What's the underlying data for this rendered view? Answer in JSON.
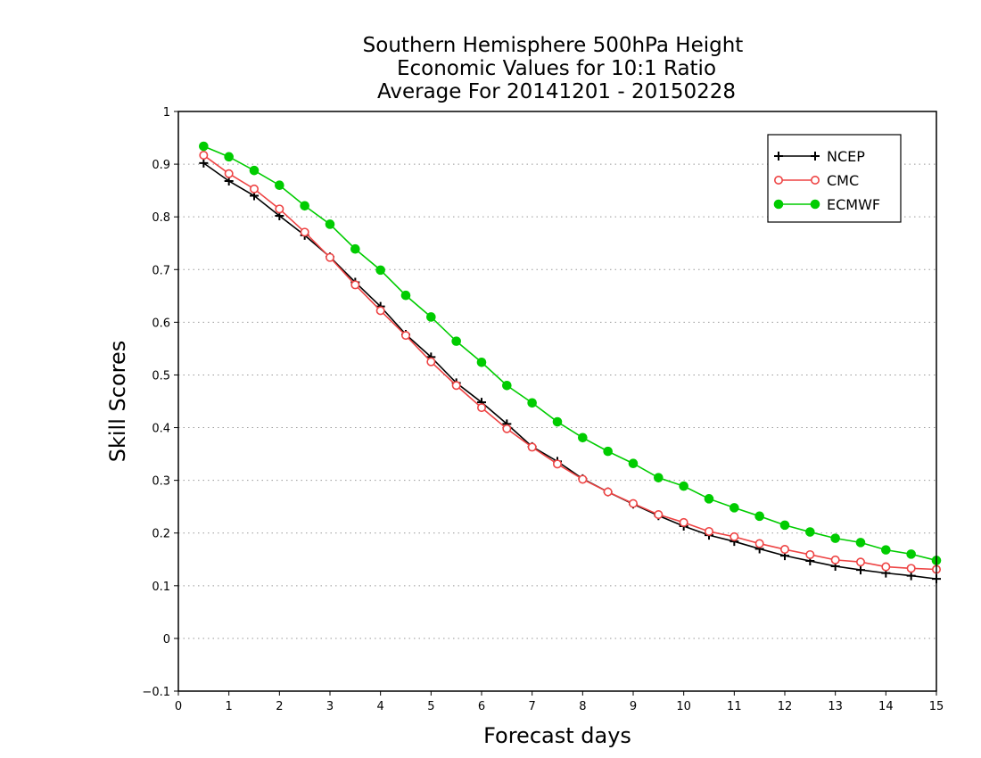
{
  "chart_data": {
    "type": "line",
    "title": [
      "Southern Hemisphere 500hPa Height",
      "Economic Values for 10:1 Ratio",
      "Average For 20141201 - 20150228"
    ],
    "xlabel": "Forecast days",
    "ylabel": "Skill Scores",
    "xlim": [
      0,
      15
    ],
    "ylim": [
      -0.1,
      1
    ],
    "xticks": [
      0,
      1,
      2,
      3,
      4,
      5,
      6,
      7,
      8,
      9,
      10,
      11,
      12,
      13,
      14,
      15
    ],
    "yticks": [
      -0.1,
      0,
      0.1,
      0.2,
      0.3,
      0.4,
      0.5,
      0.6,
      0.7,
      0.8,
      0.9,
      1
    ],
    "ytick_labels": [
      "−0.1",
      "0",
      "0.1",
      "0.2",
      "0.3",
      "0.4",
      "0.5",
      "0.6",
      "0.7",
      "0.8",
      "0.9",
      "1"
    ],
    "grid": "horizontal dotted",
    "legend_position": "top-right",
    "x": [
      0.5,
      1,
      1.5,
      2,
      2.5,
      3,
      3.5,
      4,
      4.5,
      5,
      5.5,
      6,
      6.5,
      7,
      7.5,
      8,
      8.5,
      9,
      9.5,
      10,
      10.5,
      11,
      11.5,
      12,
      12.5,
      13,
      13.5,
      14,
      14.5,
      15
    ],
    "series": [
      {
        "name": "NCEP",
        "color": "#000000",
        "marker": "plus",
        "values": [
          0.902,
          0.868,
          0.84,
          0.802,
          0.765,
          0.724,
          0.676,
          0.63,
          0.577,
          0.534,
          0.485,
          0.448,
          0.407,
          0.364,
          0.336,
          0.303,
          0.278,
          0.255,
          0.233,
          0.213,
          0.196,
          0.184,
          0.17,
          0.157,
          0.147,
          0.137,
          0.13,
          0.124,
          0.119,
          0.113
        ]
      },
      {
        "name": "CMC",
        "color": "#ee4444",
        "marker": "open-circle",
        "values": [
          0.917,
          0.882,
          0.853,
          0.815,
          0.771,
          0.723,
          0.671,
          0.622,
          0.575,
          0.525,
          0.48,
          0.438,
          0.398,
          0.363,
          0.331,
          0.302,
          0.278,
          0.256,
          0.235,
          0.22,
          0.203,
          0.193,
          0.18,
          0.169,
          0.159,
          0.149,
          0.145,
          0.136,
          0.133,
          0.131
        ]
      },
      {
        "name": "ECMWF",
        "color": "#00cc00",
        "marker": "filled-circle",
        "values": [
          0.934,
          0.914,
          0.888,
          0.86,
          0.821,
          0.786,
          0.739,
          0.699,
          0.651,
          0.61,
          0.564,
          0.524,
          0.48,
          0.447,
          0.411,
          0.381,
          0.355,
          0.332,
          0.305,
          0.289,
          0.265,
          0.248,
          0.232,
          0.215,
          0.202,
          0.19,
          0.182,
          0.168,
          0.16,
          0.148
        ]
      }
    ]
  }
}
